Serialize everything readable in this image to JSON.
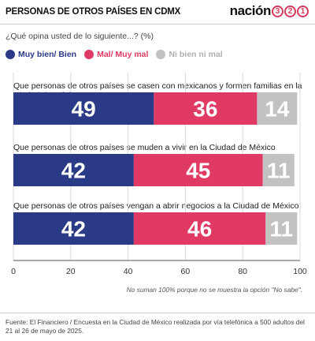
{
  "header": {
    "title": "PERSONAS DE OTROS PAÍSES EN CDMX",
    "brand_word": "nación",
    "brand_digits": [
      "3",
      "2",
      "1"
    ]
  },
  "question": "¿Qué opina usted de lo siguiente...? (%)",
  "colors": {
    "muy_bien": "#2b3a87",
    "mal": "#e03a64",
    "ni": "#c2c2c2",
    "brand_accent": "#d63a5c"
  },
  "chart_data": {
    "type": "bar",
    "orientation": "horizontal-stacked",
    "categories": [
      "Que personas de otros países se casen con mexicanos y formen familias en la Ciudad de México",
      "Que personas de otros países se muden a vivir en la Ciudad de México",
      "Que personas de otros países vengan a abrir negocios a la Ciudad de México"
    ],
    "series": [
      {
        "name": "Muy bien/ Bien",
        "values": [
          49,
          42,
          42
        ],
        "color": "#2b3a87"
      },
      {
        "name": "Mal/ Muy mal",
        "values": [
          36,
          45,
          46
        ],
        "color": "#e03a64"
      },
      {
        "name": "Ni bien ni mal",
        "values": [
          14,
          11,
          11
        ],
        "color": "#c2c2c2"
      }
    ],
    "xlim": [
      0,
      100
    ],
    "xticks": [
      0,
      20,
      40,
      60,
      80,
      100
    ],
    "grid": true,
    "legend": "top-left"
  },
  "note": "No suman 100% porque no se muestra la opción \"No sabe\".",
  "source": "Fuente: El Financiero / Encuesta en la Ciudad de México realizada por vía telefónica a 500 adultos del 21 al 26 de mayo de 2025."
}
